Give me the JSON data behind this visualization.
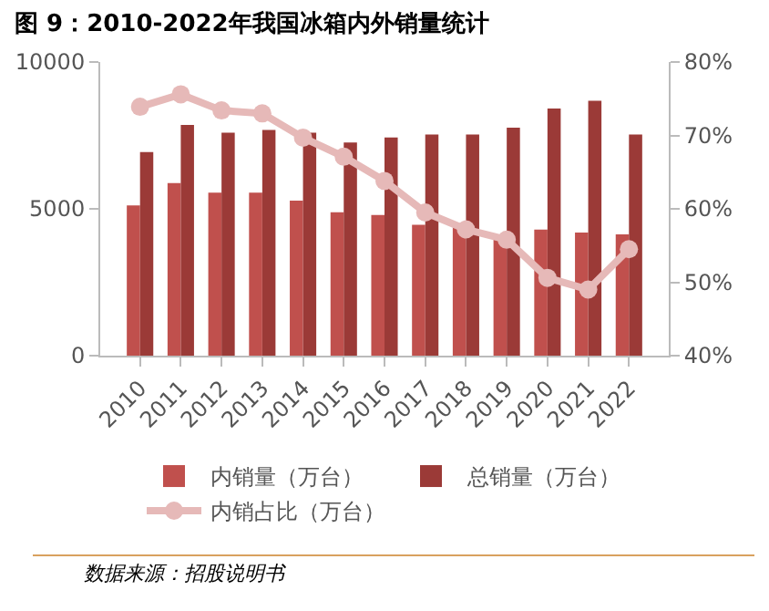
{
  "chart_data": {
    "type": "bar",
    "title": "图 9：2010-2022年我国冰箱内外销量统计",
    "categories": [
      "2010",
      "2011",
      "2012",
      "2013",
      "2014",
      "2015",
      "2016",
      "2017",
      "2018",
      "2019",
      "2020",
      "2021",
      "2022"
    ],
    "series": [
      {
        "name": "内销量（万台）",
        "color": "#c0504d",
        "values": [
          5120,
          5880,
          5550,
          5550,
          5280,
          4880,
          4790,
          4460,
          4400,
          4100,
          4290,
          4190,
          4130
        ]
      },
      {
        "name": "总销量（万台）",
        "color": "#9b3a37",
        "values": [
          6930,
          7860,
          7590,
          7690,
          7590,
          7260,
          7430,
          7530,
          7530,
          7760,
          8420,
          8680,
          7530
        ]
      },
      {
        "name": "内销占比（万台）",
        "type": "line",
        "axis": "y2",
        "color": "#e6b9b8",
        "marker": "circle",
        "values": [
          73.9,
          75.6,
          73.4,
          73.0,
          69.7,
          67.1,
          63.8,
          59.5,
          57.2,
          55.8,
          50.6,
          49.0,
          54.5
        ]
      }
    ],
    "ylim": [
      0,
      10000
    ],
    "yticks": [
      0,
      5000,
      10000
    ],
    "y2lim": [
      40,
      80
    ],
    "y2ticks": [
      {
        "value": 40,
        "label": "40%"
      },
      {
        "value": 50,
        "label": "50%"
      },
      {
        "value": 60,
        "label": "60%"
      },
      {
        "value": 70,
        "label": "70%"
      },
      {
        "value": 80,
        "label": "80%"
      }
    ],
    "grid": false,
    "legend": "bottom",
    "annotations": [
      "数据来源：招股说明书"
    ]
  }
}
